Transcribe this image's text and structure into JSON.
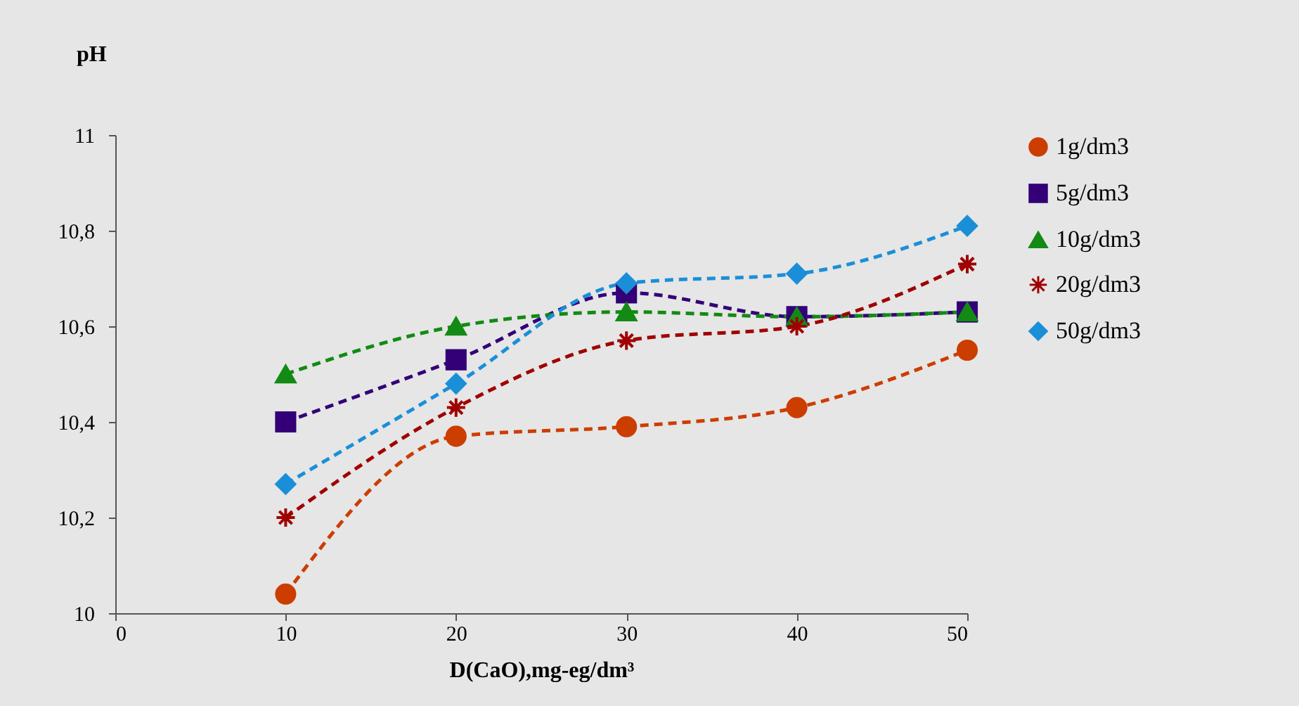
{
  "chart_data": {
    "type": "line",
    "xlabel": "D(CaO),mg-eg/dm³",
    "ylabel": "pH",
    "x": [
      10,
      20,
      30,
      40,
      50
    ],
    "series": [
      {
        "name": "1g/dm3",
        "color": "#cc3d00",
        "marker": "circle",
        "values": [
          10.04,
          10.37,
          10.39,
          10.43,
          10.55
        ]
      },
      {
        "name": "5g/dm3",
        "color": "#330077",
        "marker": "square",
        "values": [
          10.4,
          10.53,
          10.67,
          10.62,
          10.63
        ]
      },
      {
        "name": "10g/dm3",
        "color": "#138a13",
        "marker": "triangle",
        "values": [
          10.5,
          10.6,
          10.63,
          10.62,
          10.63
        ]
      },
      {
        "name": "20g/dm3",
        "color": "#a00000",
        "marker": "cross",
        "values": [
          10.2,
          10.43,
          10.57,
          10.6,
          10.73
        ]
      },
      {
        "name": "50g/dm3",
        "color": "#1a8fd8",
        "marker": "diamond",
        "values": [
          10.27,
          10.48,
          10.69,
          10.71,
          10.81
        ]
      }
    ],
    "xlim": [
      0,
      50
    ],
    "xticks": [
      0,
      10,
      20,
      30,
      40,
      50
    ],
    "ylim": [
      10,
      11
    ],
    "yticks": [
      10,
      {
        "value": 10.2,
        "label": "10,2"
      },
      {
        "value": 10.4,
        "label": "10,4"
      },
      {
        "value": 10.6,
        "label": "10,6"
      },
      {
        "value": 10.8,
        "label": "10,8"
      },
      11
    ],
    "grid": false,
    "legend": "right",
    "line_style": "dashed"
  }
}
